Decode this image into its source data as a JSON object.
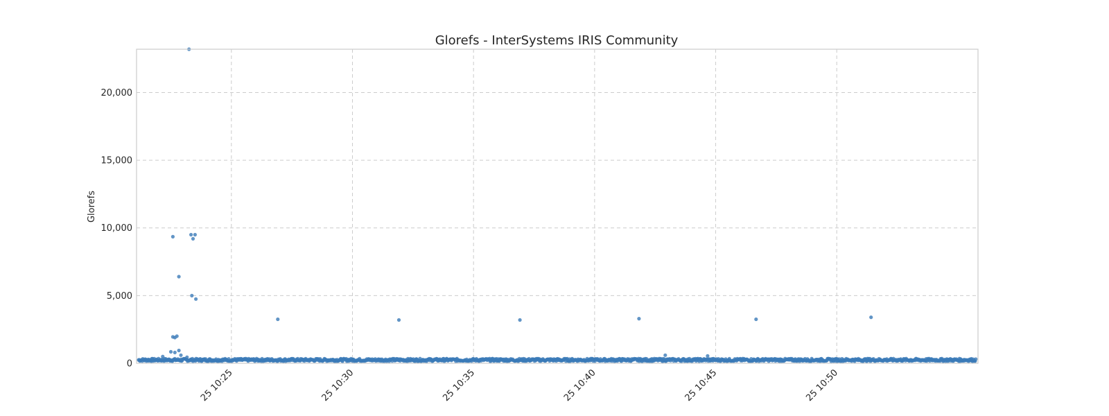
{
  "chart_data": {
    "type": "scatter",
    "title": "Glorefs - InterSystems IRIS Community",
    "xlabel": "",
    "ylabel": "Glorefs",
    "x_axis": "time",
    "xlim": [
      "10:21:05",
      "10:55:50"
    ],
    "ylim": [
      0,
      23200
    ],
    "grid": true,
    "color": "#3b7ab8",
    "x_ticks": [
      {
        "t": "10:25:00",
        "label": "25 10:25"
      },
      {
        "t": "10:30:00",
        "label": "25 10:30"
      },
      {
        "t": "10:35:00",
        "label": "25 10:35"
      },
      {
        "t": "10:40:00",
        "label": "25 10:40"
      },
      {
        "t": "10:45:00",
        "label": "25 10:45"
      },
      {
        "t": "10:50:00",
        "label": "25 10:50"
      }
    ],
    "y_ticks": [
      {
        "v": 0,
        "label": "0"
      },
      {
        "v": 5000,
        "label": "5,000"
      },
      {
        "v": 10000,
        "label": "10,000"
      },
      {
        "v": 15000,
        "label": "15,000"
      },
      {
        "v": 20000,
        "label": "20,000"
      }
    ],
    "points": [
      {
        "x": "10:23:15",
        "y": 23200
      },
      {
        "x": "10:22:35",
        "y": 9350
      },
      {
        "x": "10:23:20",
        "y": 9500
      },
      {
        "x": "10:23:25",
        "y": 9200
      },
      {
        "x": "10:23:30",
        "y": 9500
      },
      {
        "x": "10:22:50",
        "y": 6400
      },
      {
        "x": "10:23:22",
        "y": 5000
      },
      {
        "x": "10:23:32",
        "y": 4750
      },
      {
        "x": "10:22:35",
        "y": 1950
      },
      {
        "x": "10:22:40",
        "y": 1900
      },
      {
        "x": "10:22:45",
        "y": 2000
      },
      {
        "x": "10:22:30",
        "y": 850
      },
      {
        "x": "10:22:40",
        "y": 800
      },
      {
        "x": "10:22:50",
        "y": 950
      },
      {
        "x": "10:22:55",
        "y": 600
      },
      {
        "x": "10:22:10",
        "y": 500
      },
      {
        "x": "10:23:10",
        "y": 450
      },
      {
        "x": "10:26:55",
        "y": 3250
      },
      {
        "x": "10:31:55",
        "y": 3200
      },
      {
        "x": "10:36:55",
        "y": 3200
      },
      {
        "x": "10:41:50",
        "y": 3300
      },
      {
        "x": "10:42:55",
        "y": 600
      },
      {
        "x": "10:44:40",
        "y": 550
      },
      {
        "x": "10:46:40",
        "y": 3250
      },
      {
        "x": "10:51:25",
        "y": 3400
      }
    ],
    "baseline_band": {
      "x_start": "10:21:10",
      "x_end": "10:55:45",
      "y_low": 150,
      "y_high": 350
    }
  }
}
